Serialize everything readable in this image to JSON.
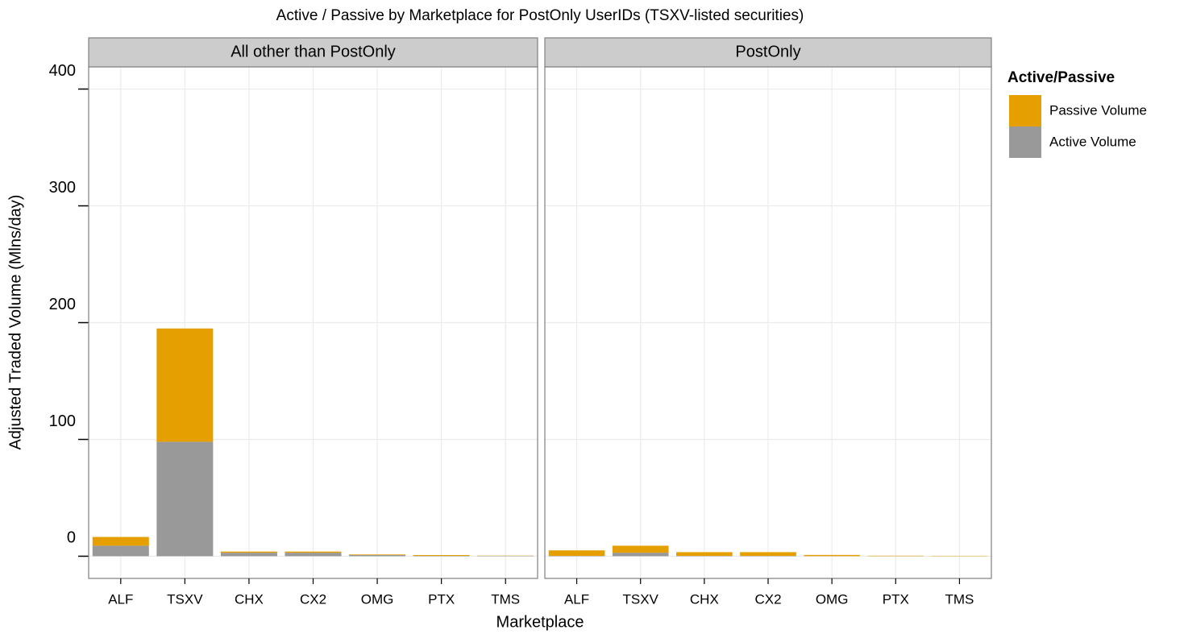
{
  "chart_data": {
    "type": "bar",
    "title": "Active / Passive by Marketplace for PostOnly UserIDs    (TSXV-listed securities)",
    "x_label": "Marketplace",
    "y_label": "Adjusted Traded Volume (Mlns/day)",
    "legend_title": "Active/Passive",
    "categories": [
      "ALF",
      "TSXV",
      "CHX",
      "CX2",
      "OMG",
      "PTX",
      "TMS"
    ],
    "series": [
      {
        "name": "Active Volume",
        "color": "#999999"
      },
      {
        "name": "Passive Volume",
        "color": "#e69f00"
      }
    ],
    "panels": [
      {
        "title": "All other than PostOnly",
        "values": [
          [
            9,
            98,
            3,
            3,
            1,
            0.3,
            0.3
          ],
          [
            7.5,
            97,
            1,
            1,
            0.5,
            0.7,
            0.2
          ]
        ]
      },
      {
        "title": "PostOnly",
        "values": [
          [
            0.3,
            3,
            0.3,
            0.3,
            0.1,
            0.05,
            0.05
          ],
          [
            4.7,
            6,
            3.2,
            3.2,
            1,
            0.4,
            0.3
          ]
        ]
      }
    ],
    "ylim": [
      -19,
      419
    ],
    "yticks": [
      0,
      100,
      200,
      300,
      400
    ],
    "grid": true,
    "legend": "right"
  }
}
